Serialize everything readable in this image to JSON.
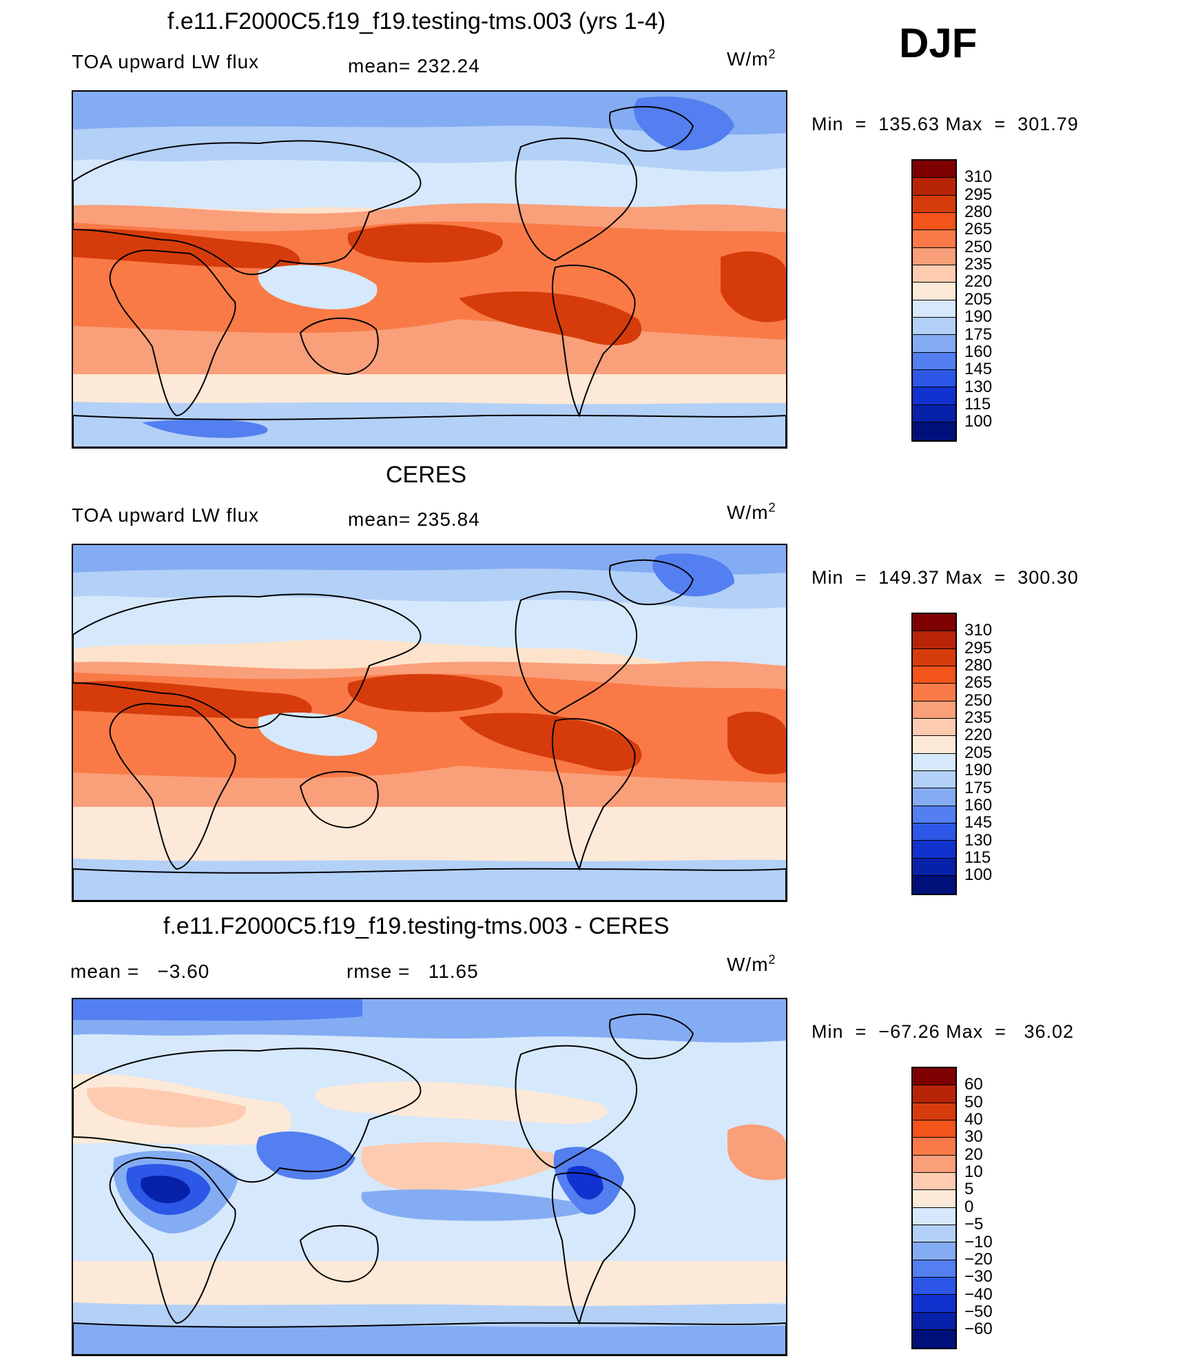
{
  "header": {
    "season": "DJF"
  },
  "units": "W/m",
  "units_exp": "2",
  "colors": {
    "abs": [
      "#7f0000",
      "#b82408",
      "#d63c0b",
      "#f2541a",
      "#f97a47",
      "#f99f7a",
      "#fdcbb0",
      "#fde9d7",
      "#d6e8fb",
      "#b3d0f7",
      "#84acf3",
      "#537ff0",
      "#2d57e6",
      "#1132cf",
      "#0721a8",
      "#00107a"
    ],
    "diff": [
      "#7f0000",
      "#b82408",
      "#d63c0b",
      "#f2541a",
      "#f97a47",
      "#f99f7a",
      "#fdcbb0",
      "#fde9d7",
      "#d6e8fb",
      "#b3d0f7",
      "#84acf3",
      "#537ff0",
      "#2d57e6",
      "#1132cf",
      "#0721a8",
      "#00107a"
    ]
  },
  "chart_data": [
    {
      "type": "heatmap",
      "title": "f.e11.F2000C5.f19_f19.testing-tms.003 (yrs 1-4)",
      "variable": "TOA upward LW flux",
      "mean_label": "mean=",
      "mean": "232.24",
      "units": "W/m2",
      "min_label": "Min",
      "min": "135.63",
      "max_label": "Max",
      "max": "301.79",
      "colorbar_levels": [
        "310",
        "295",
        "280",
        "265",
        "250",
        "235",
        "220",
        "205",
        "190",
        "175",
        "160",
        "145",
        "130",
        "115",
        "100"
      ]
    },
    {
      "type": "heatmap",
      "title": "CERES",
      "variable": "TOA upward LW flux",
      "mean_label": "mean=",
      "mean": "235.84",
      "units": "W/m2",
      "min_label": "Min",
      "min": "149.37",
      "max_label": "Max",
      "max": "300.30",
      "colorbar_levels": [
        "310",
        "295",
        "280",
        "265",
        "250",
        "235",
        "220",
        "205",
        "190",
        "175",
        "160",
        "145",
        "130",
        "115",
        "100"
      ]
    },
    {
      "type": "heatmap",
      "title": "f.e11.F2000C5.f19_f19.testing-tms.003 - CERES",
      "mean_label": "mean =",
      "mean": "−3.60",
      "rmse_label": "rmse =",
      "rmse": "11.65",
      "units": "W/m2",
      "min_label": "Min",
      "min": "−67.26",
      "max_label": "Max",
      "max": "36.02",
      "colorbar_levels": [
        "60",
        "50",
        "40",
        "30",
        "20",
        "10",
        "5",
        "0",
        "−5",
        "−10",
        "−20",
        "−30",
        "−40",
        "−50",
        "−60"
      ]
    }
  ]
}
